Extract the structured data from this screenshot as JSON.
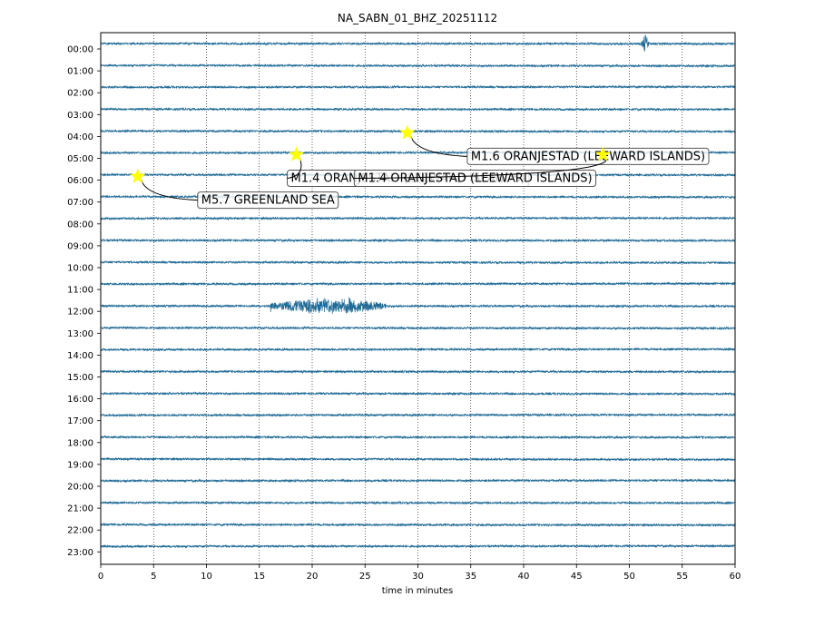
{
  "chart_data": {
    "type": "line",
    "title": "NA_SABN_01_BHZ_20251112",
    "xlabel": "time in minutes",
    "ylabel": "",
    "xlim": [
      0,
      60
    ],
    "x_ticks": [
      0,
      5,
      10,
      15,
      20,
      25,
      30,
      35,
      40,
      45,
      50,
      55,
      60
    ],
    "y_tick_labels": [
      "00:00",
      "01:00",
      "02:00",
      "03:00",
      "04:00",
      "05:00",
      "06:00",
      "07:00",
      "08:00",
      "09:00",
      "10:00",
      "11:00",
      "12:00",
      "13:00",
      "14:00",
      "15:00",
      "16:00",
      "17:00",
      "18:00",
      "19:00",
      "20:00",
      "21:00",
      "22:00",
      "23:00"
    ],
    "grid": "vertical dotted at each x tick",
    "trace_color": "#1f6a96",
    "marker_color": "#ffff00",
    "bursts": [
      {
        "hour": 0,
        "minute_start": 51.0,
        "minute_end": 52.2,
        "amplitude": "high"
      },
      {
        "hour": 12,
        "minute_start": 16.0,
        "minute_end": 27.0,
        "amplitude": "high"
      }
    ],
    "events": [
      {
        "label": "M1.6 ORANJESTAD (LEEWARD ISLANDS)",
        "hour": 4,
        "minute": 29.0
      },
      {
        "label": "M1.4 ORANJESTAD (LEEWARD ISLANDS)",
        "hour": 5,
        "minute": 18.5
      },
      {
        "label": "M1.4 ORANJESTAD (LEEWARD ISLANDS)",
        "hour": 5,
        "minute": 47.5
      },
      {
        "label": "M5.7 GREENLAND SEA",
        "hour": 6,
        "minute": 3.5
      }
    ]
  }
}
